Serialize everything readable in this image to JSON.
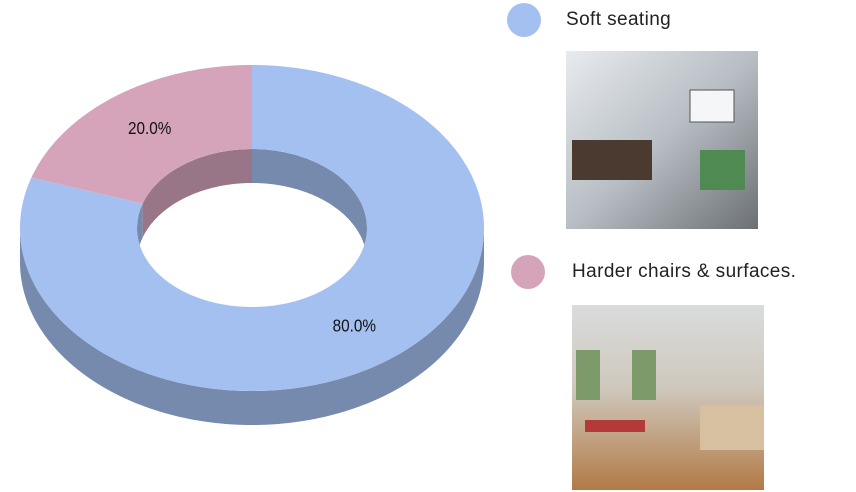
{
  "chart_data": {
    "type": "pie",
    "categories": [
      "Soft seating",
      "Harder chairs & surfaces."
    ],
    "values": [
      80,
      20
    ],
    "value_labels": [
      "80.0%",
      "20.0%"
    ],
    "colors": [
      "#a4c0f0",
      "#d5a4bb"
    ]
  }
}
